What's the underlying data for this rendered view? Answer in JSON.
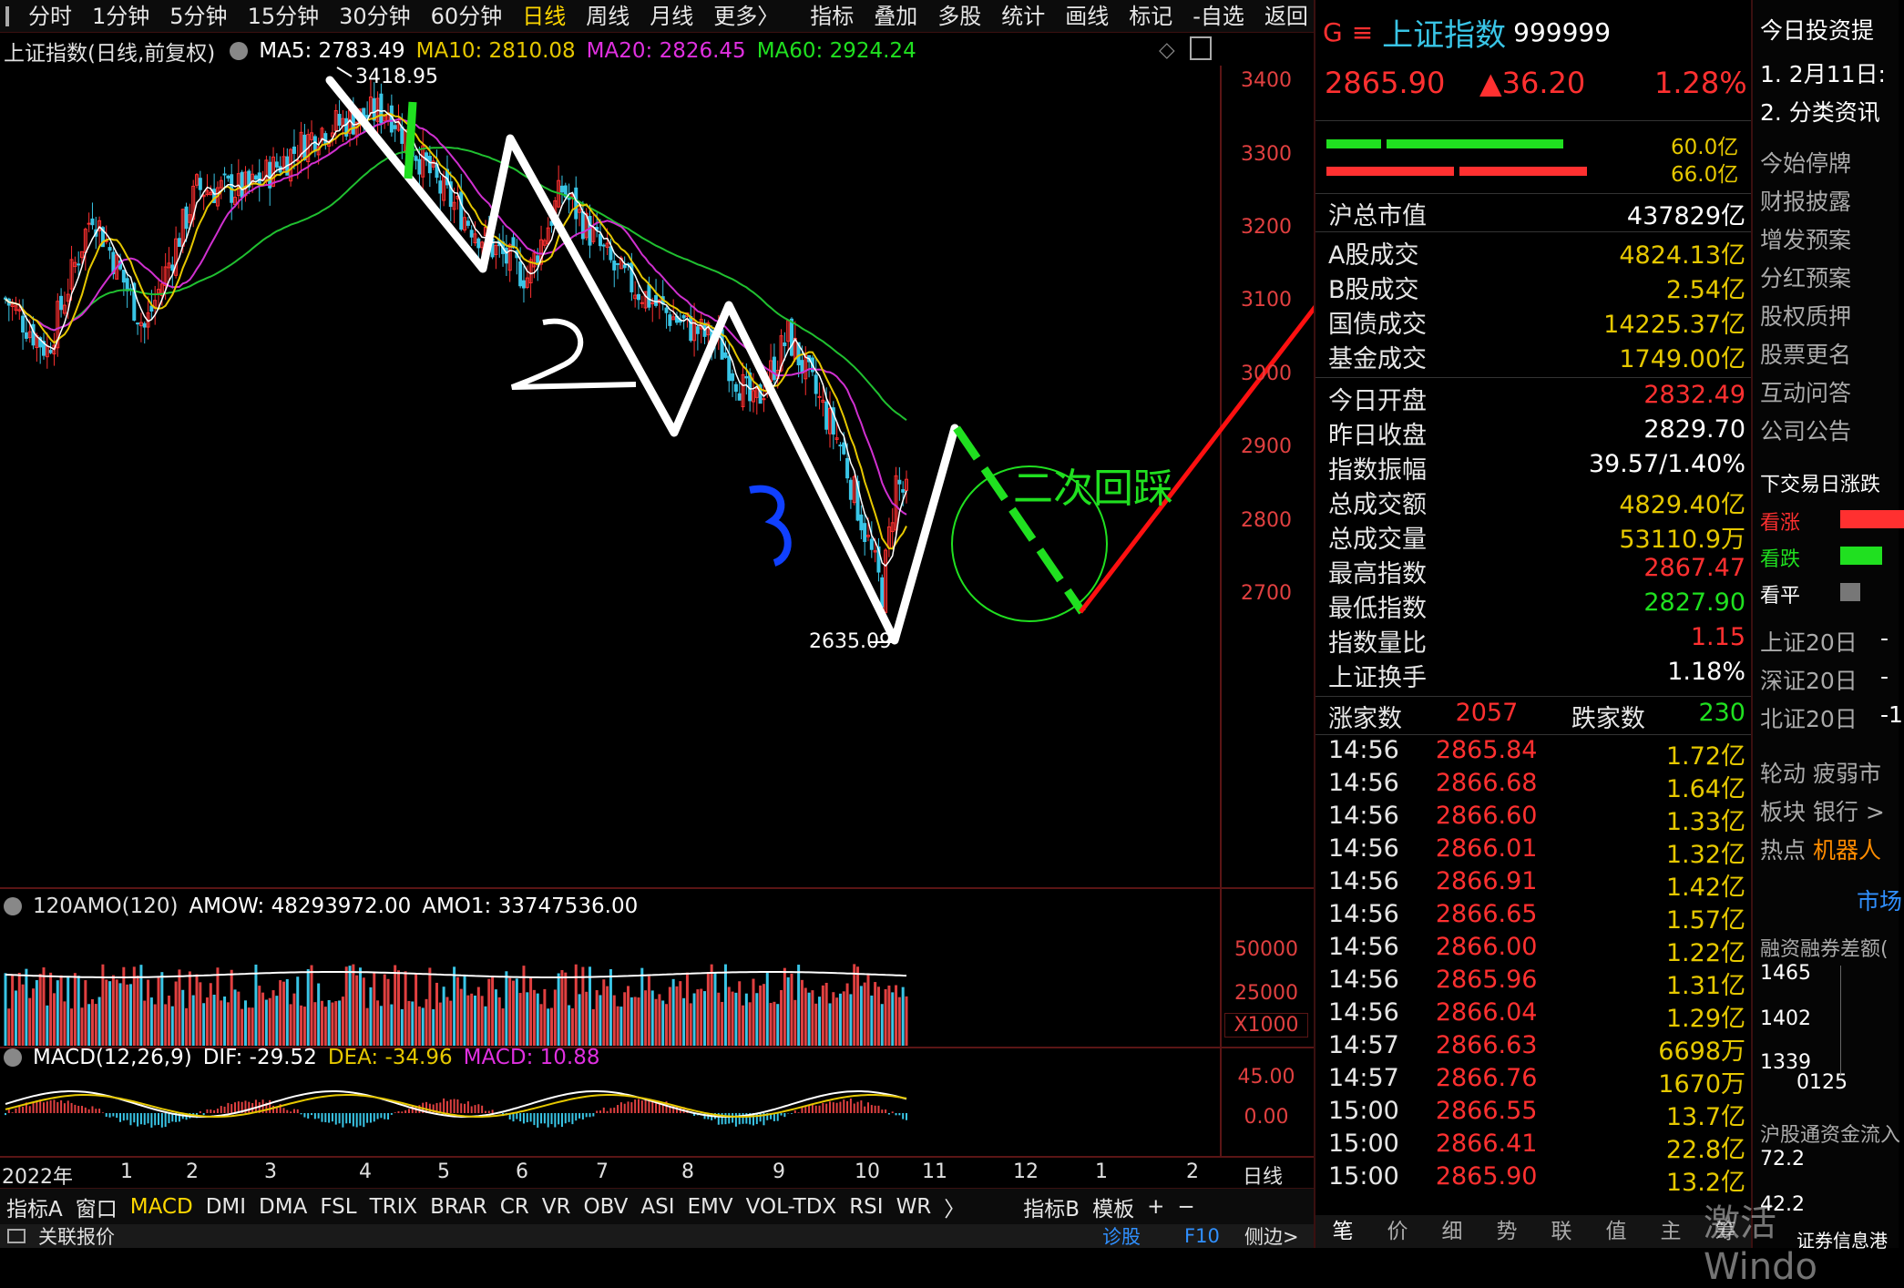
{
  "toolbar": {
    "periods": [
      "分时",
      "1分钟",
      "5分钟",
      "15分钟",
      "30分钟",
      "60分钟",
      "日线",
      "周线",
      "月线",
      "更多〉"
    ],
    "active_period": "日线",
    "tools": [
      "指标",
      "叠加",
      "多股",
      "统计",
      "画线",
      "标记",
      "-自选",
      "返回"
    ]
  },
  "chart": {
    "name": "上证指数(日线,前复权)",
    "ma5": "MA5: 2783.49",
    "ma10": "MA10: 2810.08",
    "ma20": "MA20: 2826.45",
    "ma60": "MA60: 2924.24",
    "high_label": "3418.95",
    "low_label": "2635.09",
    "y_ticks": [
      "3400",
      "3300",
      "3200",
      "3100",
      "3000",
      "2900",
      "2800",
      "2700"
    ],
    "annotation_text": "二次回踩",
    "annotation_digits": [
      "2",
      "3"
    ]
  },
  "volume": {
    "header": "120AMO(120)",
    "amow": "AMOW: 48293972.00",
    "amo1": "AMO1: 33747536.00",
    "ticks": [
      "50000",
      "25000"
    ],
    "unit": "X1000"
  },
  "macd": {
    "header": "MACD(12,26,9)",
    "dif": "DIF: -29.52",
    "dea": "DEA: -34.96",
    "macd": "MACD: 10.88",
    "ticks": [
      "45.00",
      "0.00"
    ]
  },
  "x_axis": {
    "year": "2022年",
    "months": [
      "1",
      "2",
      "3",
      "4",
      "5",
      "6",
      "7",
      "8",
      "9",
      "10",
      "11",
      "12",
      "1",
      "2"
    ],
    "period_label": "日线"
  },
  "bottom_tabs": [
    "指标A",
    "窗口",
    "MACD",
    "DMI",
    "DMA",
    "FSL",
    "TRIX",
    "BRAR",
    "CR",
    "VR",
    "OBV",
    "ASI",
    "EMV",
    "VOL-TDX",
    "RSI",
    "WR",
    "〉",
    "指标B",
    "模板",
    "+",
    "−"
  ],
  "active_indicator": "MACD",
  "status": {
    "left": "关联报价",
    "diag": "诊股",
    "f10": "F10",
    "side": "侧边>"
  },
  "quote": {
    "g_icon": "G",
    "menu_icon": "≡",
    "name": "上证指数",
    "code": "999999",
    "price": "2865.90",
    "change": "▲36.20",
    "pct": "1.28%",
    "bar_vals": [
      "60.0亿",
      "66.0亿"
    ],
    "rows1": [
      {
        "label": "沪总市值",
        "value": "437829亿",
        "color": "white"
      }
    ],
    "rows2": [
      {
        "label": "A股成交",
        "value": "4824.13亿",
        "color": "yellow"
      },
      {
        "label": "B股成交",
        "value": "2.54亿",
        "color": "yellow"
      },
      {
        "label": "国债成交",
        "value": "14225.37亿",
        "color": "yellow"
      },
      {
        "label": "基金成交",
        "value": "1749.00亿",
        "color": "yellow"
      }
    ],
    "rows3": [
      {
        "label": "今日开盘",
        "value": "2832.49",
        "color": "red"
      },
      {
        "label": "昨日收盘",
        "value": "2829.70",
        "color": "white"
      },
      {
        "label": "指数振幅",
        "value": "39.57/1.40%",
        "color": "white"
      },
      {
        "label": "总成交额",
        "value": "4829.40亿",
        "color": "yellow"
      },
      {
        "label": "总成交量",
        "value": "53110.9万",
        "color": "yellow"
      },
      {
        "label": "最高指数",
        "value": "2867.47",
        "color": "red"
      },
      {
        "label": "最低指数",
        "value": "2827.90",
        "color": "green"
      },
      {
        "label": "指数量比",
        "value": "1.15",
        "color": "red"
      },
      {
        "label": "上证换手",
        "value": "1.18%",
        "color": "white"
      }
    ],
    "up_label": "涨家数",
    "up_value": "2057",
    "down_label": "跌家数",
    "down_value": "230",
    "ticks": [
      {
        "t": "14:56",
        "p": "2865.84",
        "v": "1.72亿"
      },
      {
        "t": "14:56",
        "p": "2866.68",
        "v": "1.64亿"
      },
      {
        "t": "14:56",
        "p": "2866.60",
        "v": "1.33亿"
      },
      {
        "t": "14:56",
        "p": "2866.01",
        "v": "1.32亿"
      },
      {
        "t": "14:56",
        "p": "2866.91",
        "v": "1.42亿"
      },
      {
        "t": "14:56",
        "p": "2866.65",
        "v": "1.57亿"
      },
      {
        "t": "14:56",
        "p": "2866.00",
        "v": "1.22亿"
      },
      {
        "t": "14:56",
        "p": "2865.96",
        "v": "1.31亿"
      },
      {
        "t": "14:56",
        "p": "2866.04",
        "v": "1.29亿"
      },
      {
        "t": "14:57",
        "p": "2866.63",
        "v": "6698万"
      },
      {
        "t": "14:57",
        "p": "2866.76",
        "v": "1670万"
      },
      {
        "t": "15:00",
        "p": "2866.55",
        "v": "13.7亿"
      },
      {
        "t": "15:00",
        "p": "2866.41",
        "v": "22.8亿"
      },
      {
        "t": "15:00",
        "p": "2865.90",
        "v": "13.2亿"
      }
    ],
    "tabs": [
      "笔",
      "价",
      "细",
      "势",
      "联",
      "值",
      "主",
      "筹"
    ]
  },
  "news": {
    "title": "今日投资提",
    "items": [
      "1. 2月11日:",
      "2. 分类资讯"
    ],
    "links": [
      "今始停牌",
      "财报披露",
      "增发预案",
      "分红预案",
      "股权质押",
      "股票更名",
      "互动问答",
      "公司公告"
    ],
    "next_title": "下交易日涨跌",
    "up": "看涨",
    "down": "看跌",
    "flat": "看平",
    "stats": [
      "上证20日",
      "深证20日",
      "北证20日"
    ],
    "stat_vals": [
      "-",
      "-",
      "-1"
    ],
    "rotation": "轮动 疲弱市",
    "sector": "板块 银行 >",
    "hot_label": "热点",
    "hot_value": "机器人",
    "market": "市场",
    "margin_title": "融资融券差额(",
    "margin_ticks": [
      "1465",
      "1402",
      "1339"
    ],
    "margin_date": "0125",
    "hk_title": "沪股通资金流入",
    "hk_val": "72.2",
    "hk_val2": "42.2",
    "footer": "证券信息港"
  },
  "watermark": "激活 Windo"
}
